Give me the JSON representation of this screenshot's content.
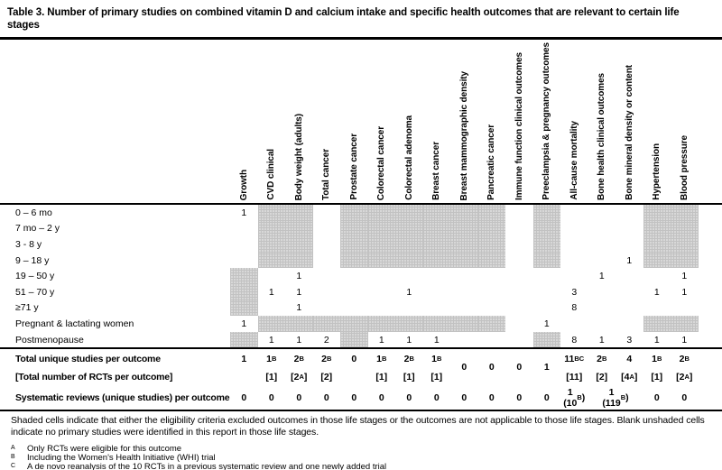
{
  "title": "Table 3. Number of primary studies on combined vitamin D and calcium intake and specific health outcomes that are relevant to certain life stages",
  "table": {
    "columns": [
      "Growth",
      "CVD clinical",
      "Body weight (adults)",
      "Total cancer",
      "Prostate cancer",
      "Colorectal cancer",
      "Colorectal adenoma",
      "Breast cancer",
      "Breast mammographic density",
      "Pancreatic cancer",
      "Immune function clinical outcomes",
      "Preeclampsia & pregnancy outcomes",
      "All-cause mortality",
      "Bone health clinical outcomes",
      "Bone mineral density or content",
      "Hypertension",
      "Blood pressure"
    ],
    "life_stage_rows": [
      {
        "label": "0 – 6 mo",
        "values": [
          "1",
          "",
          "",
          "",
          "",
          "",
          "",
          "",
          "",
          "",
          "",
          "",
          "",
          "",
          "",
          "",
          ""
        ],
        "shaded": [
          1,
          2,
          4,
          5,
          6,
          7,
          8,
          9,
          11,
          15,
          16
        ]
      },
      {
        "label": "7 mo – 2 y",
        "values": [
          "",
          "",
          "",
          "",
          "",
          "",
          "",
          "",
          "",
          "",
          "",
          "",
          "",
          "",
          "",
          "",
          ""
        ],
        "shaded": [
          1,
          2,
          4,
          5,
          6,
          7,
          8,
          9,
          11,
          15,
          16
        ]
      },
      {
        "label": "3 - 8 y",
        "values": [
          "",
          "",
          "",
          "",
          "",
          "",
          "",
          "",
          "",
          "",
          "",
          "",
          "",
          "",
          "",
          "",
          ""
        ],
        "shaded": [
          1,
          2,
          4,
          5,
          6,
          7,
          8,
          9,
          11,
          15,
          16
        ]
      },
      {
        "label": "9 – 18 y",
        "values": [
          "",
          "",
          "",
          "",
          "",
          "",
          "",
          "",
          "",
          "",
          "",
          "",
          "",
          "",
          "1",
          "",
          ""
        ],
        "shaded": [
          1,
          2,
          4,
          5,
          6,
          7,
          8,
          9,
          11,
          15,
          16
        ]
      },
      {
        "label": "19 – 50 y",
        "values": [
          "",
          "",
          "1",
          "",
          "",
          "",
          "",
          "",
          "",
          "",
          "",
          "",
          "",
          "1",
          "",
          "",
          "1"
        ],
        "shaded": [
          0
        ]
      },
      {
        "label": "51 – 70 y",
        "values": [
          "",
          "1",
          "1",
          "",
          "",
          "",
          "1",
          "",
          "",
          "",
          "",
          "",
          "3",
          "",
          "",
          "1",
          "1"
        ],
        "shaded": [
          0
        ]
      },
      {
        "label": "≥71 y",
        "values": [
          "",
          "",
          "1",
          "",
          "",
          "",
          "",
          "",
          "",
          "",
          "",
          "",
          "8",
          "",
          "",
          "",
          ""
        ],
        "shaded": [
          0
        ]
      },
      {
        "label": "Pregnant & lactating women",
        "values": [
          "1",
          "",
          "",
          "",
          "",
          "",
          "",
          "",
          "",
          "",
          "",
          "1",
          "",
          "",
          "",
          "",
          ""
        ],
        "shaded": [
          1,
          2,
          3,
          4,
          5,
          6,
          7,
          8,
          9,
          15,
          16
        ]
      },
      {
        "label": "Postmenopause",
        "values": [
          "",
          "1",
          "1",
          "2",
          "",
          "1",
          "1",
          "1",
          "",
          "",
          "",
          "",
          "8",
          "1",
          "3",
          "1",
          "1"
        ],
        "shaded": [
          0,
          4,
          11
        ]
      }
    ],
    "summary": {
      "total_label": "Total unique studies per outcome",
      "total_values": [
        "1",
        "1{B}",
        "2{B}",
        "2{B}",
        "0",
        "1{B}",
        "2{B}",
        "1{B}",
        "0",
        "0",
        "0",
        "1",
        "11{BC}",
        "2{B}",
        "4",
        "1{B}",
        "2{B}"
      ],
      "total_centered": [
        8,
        9,
        10,
        11
      ],
      "rct_label": "[Total number of RCTs per outcome]",
      "rct_values": [
        "",
        "[1]",
        "[2{A}]",
        "[2]",
        "",
        "[1]",
        "[1]",
        "[1]",
        "",
        "",
        "",
        "",
        "[11]",
        "[2]",
        "[4{A}]",
        "[1]",
        "[2{A}]"
      ],
      "sys_label": "Systematic reviews (unique studies) per outcome",
      "sys_values": [
        "0",
        "0",
        "0",
        "0",
        "0",
        "0",
        "0",
        "0",
        "0",
        "0",
        "0",
        "0",
        "1\n(10{B})",
        "1\n(119{B})",
        "",
        "0",
        "0"
      ],
      "sys_span_col": 13,
      "sys_skip_col": 14
    }
  },
  "notes": {
    "shading": "Shaded cells indicate that either the eligibility criteria excluded outcomes in those life stages or the outcomes are not applicable to those life stages. Blank unshaded cells indicate no primary studies were identified in this report in those life stages."
  },
  "footnotes": [
    {
      "mark": "A",
      "text": "Only RCTs were eligible for this outcome"
    },
    {
      "mark": "B",
      "text": "Including the Women's Health Initiative (WHI) trial"
    },
    {
      "mark": "C",
      "text": "A de novo reanalysis of the 10 RCTs in a previous systematic review and one newly added trial"
    }
  ]
}
